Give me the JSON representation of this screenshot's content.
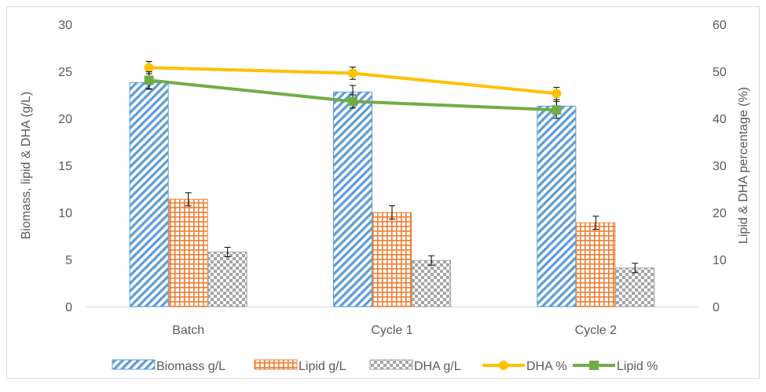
{
  "chart_data": {
    "type": "bar",
    "title": "",
    "categories": [
      "Batch",
      "Cycle 1",
      "Cycle 2"
    ],
    "ylabel": "Biomass, lipid & DHA (g/L)",
    "y2label": "Lipid & DHA percentage (%)",
    "ylim": [
      0,
      30
    ],
    "y2lim": [
      0,
      60
    ],
    "yticks": [
      0,
      5,
      10,
      15,
      20,
      25,
      30
    ],
    "y2ticks": [
      0,
      10,
      20,
      30,
      40,
      50,
      60
    ],
    "grid": false,
    "legend_position": "bottom",
    "bar_series": [
      {
        "name": "Biomass g/L",
        "values": [
          23.8,
          22.8,
          21.3
        ],
        "errors": [
          0.7,
          0.7,
          0.7
        ],
        "color": "#5b9bd5",
        "pattern": "diagonal-stripes"
      },
      {
        "name": "Lipid g/L",
        "values": [
          11.4,
          10.0,
          8.9
        ],
        "errors": [
          0.7,
          0.7,
          0.7
        ],
        "color": "#ed7d31",
        "pattern": "grid"
      },
      {
        "name": "DHA g/L",
        "values": [
          5.8,
          4.9,
          4.1
        ],
        "errors": [
          0.5,
          0.5,
          0.5
        ],
        "color": "#a5a5a5",
        "pattern": "checkerboard"
      }
    ],
    "line_series": [
      {
        "name": "DHA %",
        "axis": "right",
        "values": [
          50.8,
          49.6,
          45.3
        ],
        "errors": [
          1.3,
          1.3,
          1.3
        ],
        "color": "#ffc000",
        "marker": "circle"
      },
      {
        "name": "Lipid %",
        "axis": "right",
        "values": [
          48.1,
          43.6,
          41.8
        ],
        "errors": [
          1.8,
          1.4,
          1.8
        ],
        "color": "#70ad47",
        "marker": "square"
      }
    ]
  }
}
